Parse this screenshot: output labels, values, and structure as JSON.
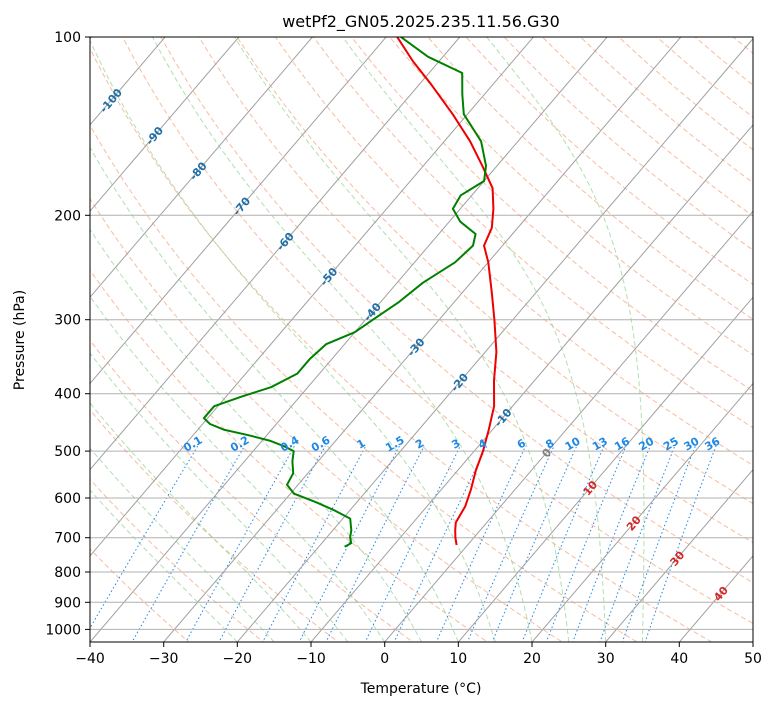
{
  "chart_data": {
    "type": "skew-t",
    "title": "wetPf2_GN05.2025.235.11.56.G30",
    "xlabel": "Temperature (°C)",
    "ylabel": "Pressure (hPa)",
    "xlim": [
      -40,
      50
    ],
    "ylim": [
      1050,
      100
    ],
    "y_scale": "log",
    "grid": true,
    "x_ticks": [
      -40,
      -30,
      -20,
      -10,
      0,
      10,
      20,
      30,
      40,
      50
    ],
    "y_ticks": [
      100,
      200,
      300,
      400,
      500,
      600,
      700,
      800,
      900,
      1000
    ],
    "colors": {
      "temperature": "#ee0000",
      "dewpoint": "#008000",
      "isotherm": "#a0a0a0",
      "dry_adiabat": "#f4a582",
      "moist_adiabat": "#8fd18f",
      "mixing_ratio": "#1e88e5",
      "isotherm_labels": "#1f6fa8",
      "positive_isotherm_labels": "#d62728",
      "zero_label": "#808080"
    },
    "series": [
      {
        "key": "temperature",
        "points": [
          {
            "p": 720,
            "t": -1.5
          },
          {
            "p": 700,
            "t": -2.5
          },
          {
            "p": 680,
            "t": -3.4
          },
          {
            "p": 660,
            "t": -4.2
          },
          {
            "p": 620,
            "t": -4.8
          },
          {
            "p": 580,
            "t": -6.0
          },
          {
            "p": 540,
            "t": -7.5
          },
          {
            "p": 500,
            "t": -8.8
          },
          {
            "p": 460,
            "t": -10.5
          },
          {
            "p": 420,
            "t": -12.5
          },
          {
            "p": 380,
            "t": -15.5
          },
          {
            "p": 340,
            "t": -18.5
          },
          {
            "p": 300,
            "t": -22.5
          },
          {
            "p": 270,
            "t": -26.0
          },
          {
            "p": 240,
            "t": -30.0
          },
          {
            "p": 225,
            "t": -32.5
          },
          {
            "p": 210,
            "t": -33.5
          },
          {
            "p": 195,
            "t": -35.5
          },
          {
            "p": 180,
            "t": -38.0
          },
          {
            "p": 165,
            "t": -42.0
          },
          {
            "p": 150,
            "t": -46.5
          },
          {
            "p": 135,
            "t": -52.0
          },
          {
            "p": 120,
            "t": -58.5
          },
          {
            "p": 110,
            "t": -63.5
          },
          {
            "p": 100,
            "t": -68.5
          }
        ]
      },
      {
        "key": "dewpoint",
        "points": [
          {
            "p": 725,
            "t": -16.5
          },
          {
            "p": 715,
            "t": -16.0
          },
          {
            "p": 700,
            "t": -16.8
          },
          {
            "p": 680,
            "t": -17.5
          },
          {
            "p": 650,
            "t": -19.0
          },
          {
            "p": 630,
            "t": -22.0
          },
          {
            "p": 610,
            "t": -25.5
          },
          {
            "p": 590,
            "t": -29.5
          },
          {
            "p": 570,
            "t": -31.5
          },
          {
            "p": 545,
            "t": -32.0
          },
          {
            "p": 520,
            "t": -33.5
          },
          {
            "p": 500,
            "t": -34.5
          },
          {
            "p": 490,
            "t": -36.5
          },
          {
            "p": 480,
            "t": -39.0
          },
          {
            "p": 470,
            "t": -42.5
          },
          {
            "p": 460,
            "t": -46.5
          },
          {
            "p": 450,
            "t": -49.0
          },
          {
            "p": 440,
            "t": -50.5
          },
          {
            "p": 420,
            "t": -50.5
          },
          {
            "p": 405,
            "t": -48.0
          },
          {
            "p": 390,
            "t": -45.0
          },
          {
            "p": 370,
            "t": -43.0
          },
          {
            "p": 350,
            "t": -43.0
          },
          {
            "p": 330,
            "t": -42.5
          },
          {
            "p": 315,
            "t": -40.0
          },
          {
            "p": 300,
            "t": -39.0
          },
          {
            "p": 280,
            "t": -37.5
          },
          {
            "p": 260,
            "t": -36.5
          },
          {
            "p": 240,
            "t": -34.5
          },
          {
            "p": 225,
            "t": -34.0
          },
          {
            "p": 215,
            "t": -35.0
          },
          {
            "p": 205,
            "t": -38.5
          },
          {
            "p": 195,
            "t": -41.0
          },
          {
            "p": 185,
            "t": -41.5
          },
          {
            "p": 175,
            "t": -40.0
          },
          {
            "p": 165,
            "t": -41.5
          },
          {
            "p": 150,
            "t": -45.0
          },
          {
            "p": 135,
            "t": -50.5
          },
          {
            "p": 125,
            "t": -53.0
          },
          {
            "p": 115,
            "t": -55.5
          },
          {
            "p": 108,
            "t": -62.0
          },
          {
            "p": 100,
            "t": -68.0
          }
        ]
      }
    ],
    "isotherm_labels": [
      {
        "text": "-100",
        "t": -100
      },
      {
        "text": "-90",
        "t": -90
      },
      {
        "text": "-80",
        "t": -80
      },
      {
        "text": "-70",
        "t": -70
      },
      {
        "text": "-60",
        "t": -60
      },
      {
        "text": "-50",
        "t": -50
      },
      {
        "text": "-40",
        "t": -40
      },
      {
        "text": "-30",
        "t": -30
      },
      {
        "text": "-20",
        "t": -20
      },
      {
        "text": "-10",
        "t": -10
      },
      {
        "text": "0",
        "t": 0
      },
      {
        "text": "10",
        "t": 10
      },
      {
        "text": "20",
        "t": 20
      },
      {
        "text": "30",
        "t": 30
      },
      {
        "text": "40",
        "t": 40
      }
    ],
    "mixing_ratio_labels": [
      "0.1",
      "0.2",
      "0.4",
      "0.6",
      "1",
      "1.5",
      "2",
      "3",
      "4",
      "6",
      "8",
      "10",
      "13",
      "16",
      "20",
      "25",
      "30",
      "36"
    ]
  }
}
